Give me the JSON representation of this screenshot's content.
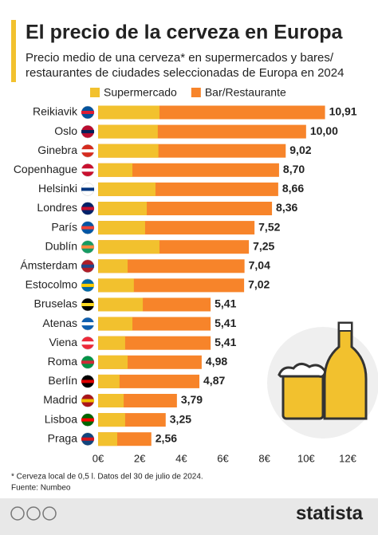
{
  "chart_data": {
    "type": "overlap-hbar",
    "title": "El precio de la cerveza en Europa",
    "subtitle": [
      "Precio medio de una cerveza* en supermercados y bares/",
      "restaurantes de ciudades seleccionadas de Europa en 2024"
    ],
    "categories": [
      "Reikiavik",
      "Oslo",
      "Ginebra",
      "Copenhague",
      "Helsinki",
      "Londres",
      "París",
      "Dublín",
      "Ámsterdam",
      "Estocolmo",
      "Bruselas",
      "Atenas",
      "Viena",
      "Roma",
      "Berlín",
      "Madrid",
      "Lisboa",
      "Praga"
    ],
    "series": [
      {
        "name": "Supermercado",
        "color": "#f2c12e",
        "values": [
          2.95,
          2.87,
          2.9,
          1.65,
          2.76,
          2.34,
          2.26,
          2.95,
          1.42,
          1.72,
          2.15,
          1.65,
          1.3,
          1.42,
          1.03,
          1.23,
          1.3,
          0.92
        ]
      },
      {
        "name": "Bar/Restaurante",
        "color": "#f7842a",
        "values": [
          10.91,
          10.0,
          9.02,
          8.7,
          8.66,
          8.36,
          7.52,
          7.25,
          7.04,
          7.02,
          5.41,
          5.41,
          5.41,
          4.98,
          4.87,
          3.79,
          3.25,
          2.56
        ],
        "value_labels": [
          "10,91",
          "10,00",
          "9,02",
          "8,70",
          "8,66",
          "8,36",
          "7,52",
          "7,25",
          "7,04",
          "7,02",
          "5,41",
          "5,41",
          "5,41",
          "4,98",
          "4,87",
          "3,79",
          "3,25",
          "2,56"
        ]
      }
    ],
    "xlim": [
      0,
      12
    ],
    "xticks": [
      {
        "value": 0,
        "label": "0€"
      },
      {
        "value": 2,
        "label": "2€"
      },
      {
        "value": 4,
        "label": "4€"
      },
      {
        "value": 6,
        "label": "6€"
      },
      {
        "value": 8,
        "label": "8€"
      },
      {
        "value": 10,
        "label": "10€"
      },
      {
        "value": 12,
        "label": "12€"
      }
    ],
    "grid": false,
    "legend": "top",
    "note": "* Cerveza local de 0,5 l. Datos del 30 de julio de 2024.",
    "source": "Fuente: Numbeo",
    "logo": "statista"
  }
}
